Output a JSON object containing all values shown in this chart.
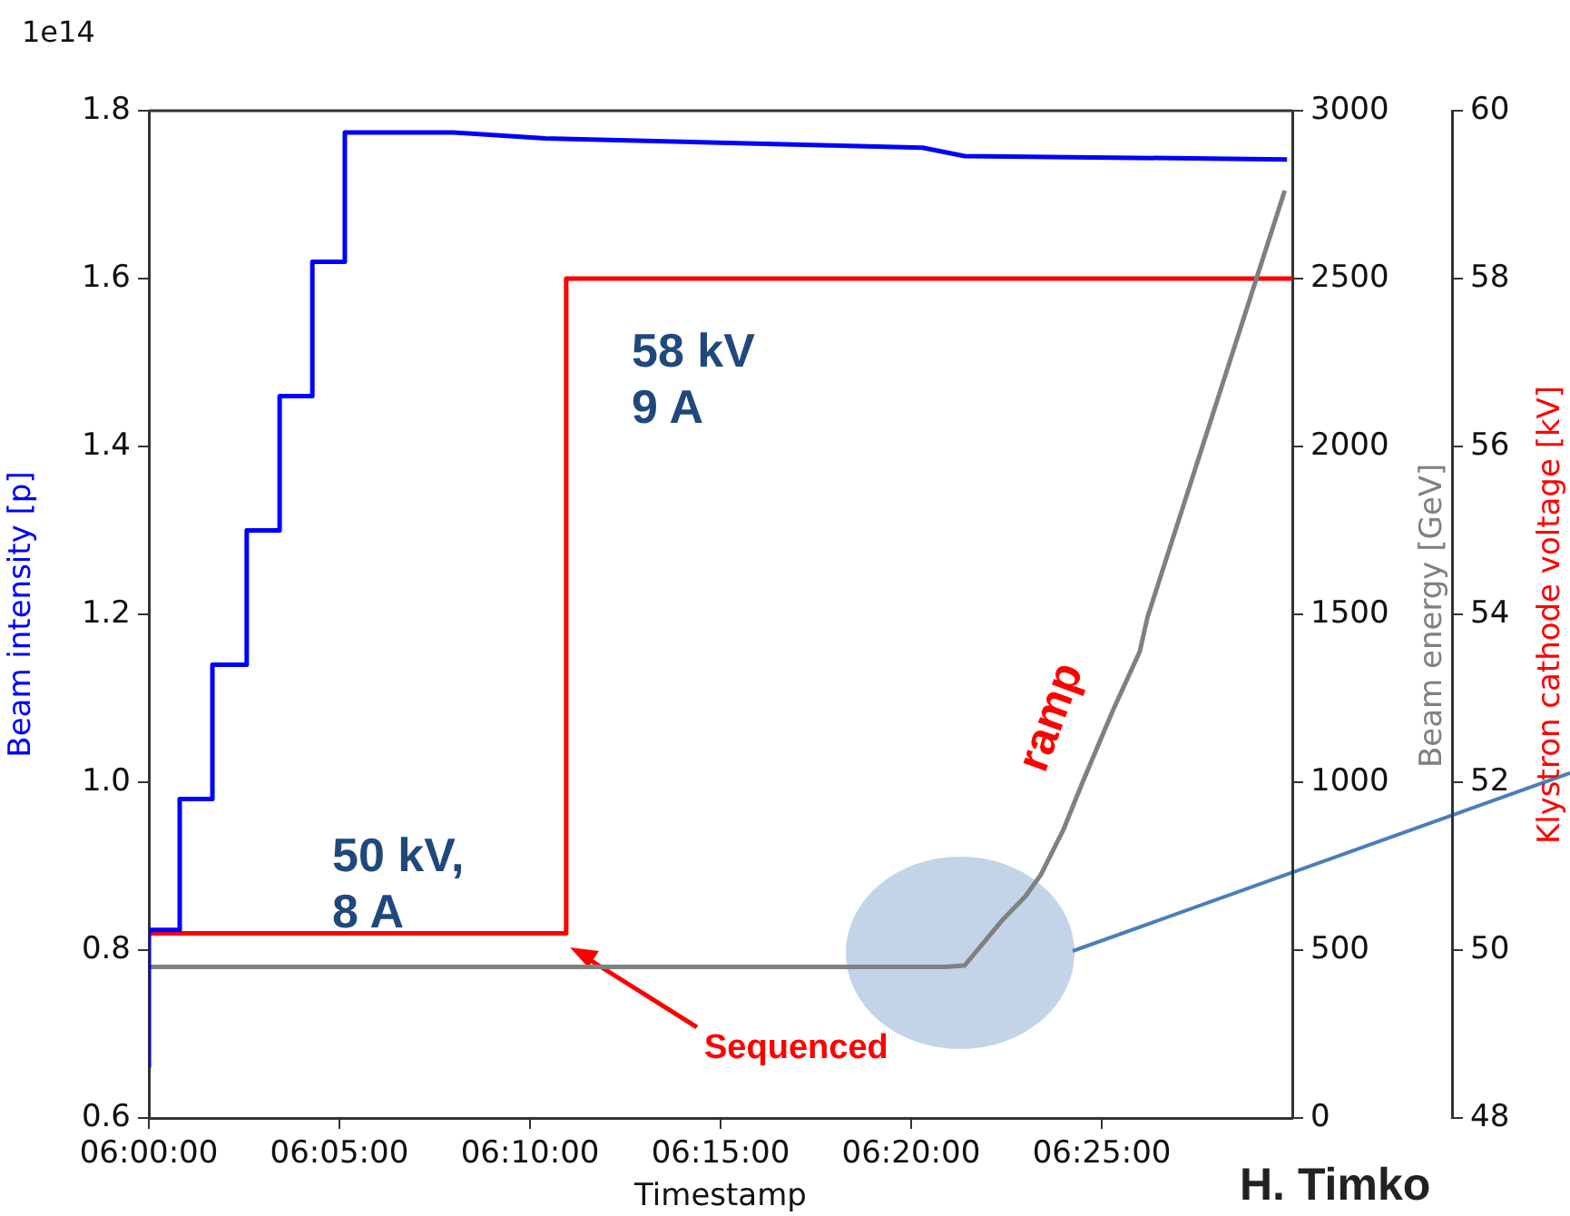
{
  "chart_data": {
    "type": "line",
    "xlabel": "Timestamp",
    "ylabel": "Beam intensity [p]",
    "y2label": "Beam energy [GeV]",
    "y3label": "Klystron cathode voltage [kV]",
    "xlim": [
      6,
      6.5
    ],
    "xticks": [
      {
        "value": 6,
        "label": "06:00:00"
      },
      {
        "value": 6.0833,
        "label": "06:05:00"
      },
      {
        "value": 6.1667,
        "label": "06:10:00"
      },
      {
        "value": 6.25,
        "label": "06:15:00"
      },
      {
        "value": 6.3333,
        "label": "06:20:00"
      },
      {
        "value": 6.4167,
        "label": "06:25:00"
      }
    ],
    "ylim": [
      0.6,
      1.8
    ],
    "yticks": [
      {
        "value": 0.6,
        "label": "0.6"
      },
      {
        "value": 0.8,
        "label": "0.8"
      },
      {
        "value": 1.0,
        "label": "1.0"
      },
      {
        "value": 1.2,
        "label": "1.2"
      },
      {
        "value": 1.4,
        "label": "1.4"
      },
      {
        "value": 1.6,
        "label": "1.6"
      },
      {
        "value": 1.8,
        "label": "1.8"
      }
    ],
    "y2lim": [
      0,
      3000
    ],
    "y2ticks": [
      0,
      500,
      1000,
      1500,
      2000,
      2500,
      3000
    ],
    "y3lim": [
      48,
      60
    ],
    "y3ticks": [
      48,
      50,
      52,
      54,
      56,
      58,
      60
    ],
    "series": [
      {
        "color": "#0000ff",
        "x": [
          6,
          6,
          6.0135,
          6.0135,
          6.0278,
          6.0278,
          6.0428,
          6.0428,
          6.0572,
          6.0572,
          6.0715,
          6.0715,
          6.0857,
          6.0857,
          6.1333,
          6.1733,
          6.3383,
          6.3567,
          6.4977
        ],
        "values": [
          0.66,
          0.824,
          0.824,
          0.98,
          0.98,
          1.14,
          1.14,
          1.3,
          1.3,
          1.46,
          1.46,
          1.62,
          1.62,
          1.774,
          1.774,
          1.767,
          1.756,
          1.746,
          1.742
        ]
      },
      {
        "color": "#808080",
        "axis": "y2",
        "x": [
          6,
          6.3483,
          6.3567,
          6.3733,
          6.3833,
          6.39,
          6.4,
          6.4083,
          6.4217,
          6.4333,
          6.4367,
          6.4967
        ],
        "values": [
          450,
          450,
          454,
          590,
          660,
          724,
          860,
          1000,
          1216,
          1389,
          1492,
          2762
        ]
      },
      {
        "color": "#ff0000",
        "axis": "y3",
        "x": [
          6,
          6.1825,
          6.1825,
          6.5
        ],
        "values": [
          50.2,
          50.2,
          58,
          58
        ]
      }
    ],
    "annotations": [
      "1e14",
      "58 kV\n9 A",
      "50 kV,\n8 A",
      "ramp",
      "Sequenced",
      "H. Timko"
    ]
  }
}
